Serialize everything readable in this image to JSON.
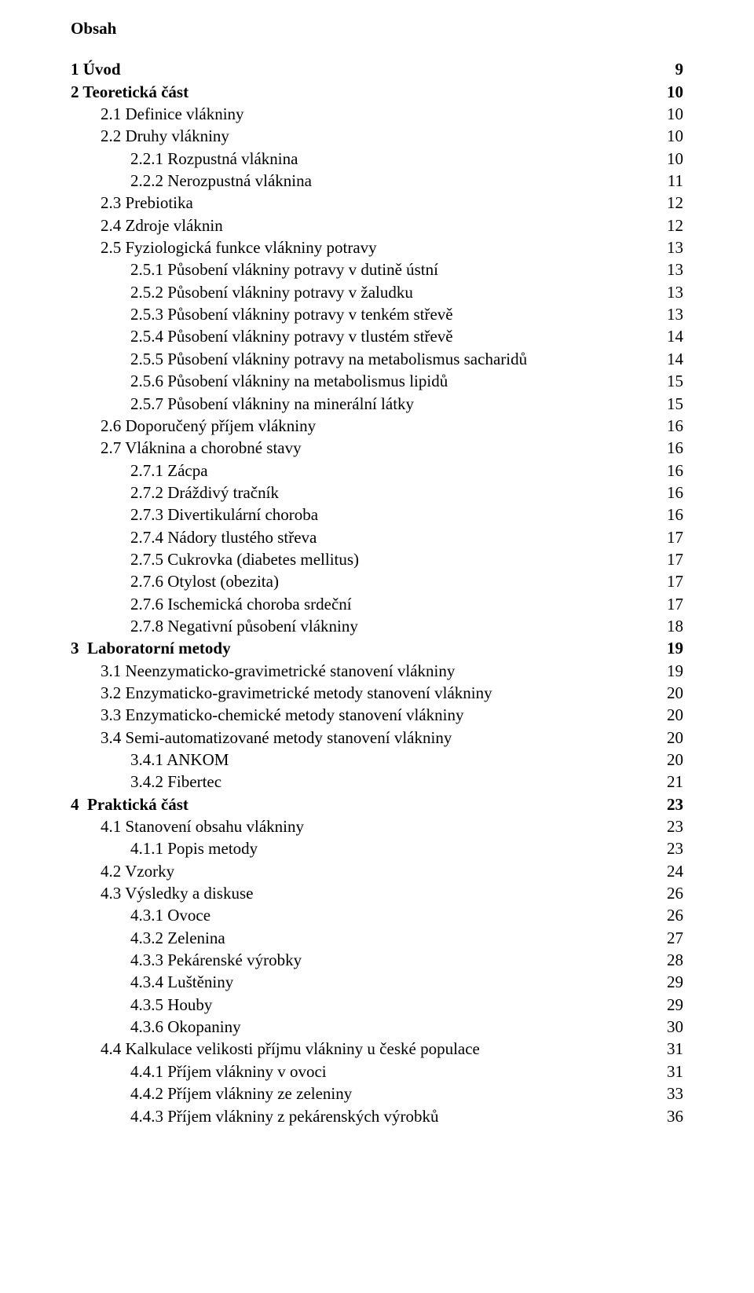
{
  "title": "Obsah",
  "entries": [
    {
      "label": "1 Úvod",
      "page": "9",
      "indent": 0,
      "bold": true
    },
    {
      "label": "2 Teoretická část",
      "page": "10",
      "indent": 0,
      "bold": true
    },
    {
      "label": "2.1 Definice vlákniny",
      "page": "10",
      "indent": 1,
      "bold": false
    },
    {
      "label": "2.2 Druhy vlákniny",
      "page": "10",
      "indent": 1,
      "bold": false
    },
    {
      "label": "2.2.1 Rozpustná vláknina",
      "page": "10",
      "indent": 2,
      "bold": false
    },
    {
      "label": "2.2.2 Nerozpustná vláknina",
      "page": "11",
      "indent": 2,
      "bold": false
    },
    {
      "label": "2.3 Prebiotika",
      "page": "12",
      "indent": 1,
      "bold": false
    },
    {
      "label": "2.4 Zdroje vláknin",
      "page": "12",
      "indent": 1,
      "bold": false
    },
    {
      "label": "2.5 Fyziologická funkce vlákniny potravy",
      "page": "13",
      "indent": 1,
      "bold": false
    },
    {
      "label": "2.5.1 Působení vlákniny potravy v dutině ústní",
      "page": "13",
      "indent": 2,
      "bold": false
    },
    {
      "label": "2.5.2 Působení vlákniny potravy v žaludku",
      "page": "13",
      "indent": 2,
      "bold": false
    },
    {
      "label": "2.5.3 Působení vlákniny potravy v tenkém střevě",
      "page": "13",
      "indent": 2,
      "bold": false
    },
    {
      "label": "2.5.4 Působení vlákniny potravy v tlustém střevě",
      "page": "14",
      "indent": 2,
      "bold": false
    },
    {
      "label": "2.5.5 Působení vlákniny potravy na metabolismus sacharidů",
      "page": "14",
      "indent": 2,
      "bold": false
    },
    {
      "label": "2.5.6 Působení vlákniny na metabolismus lipidů",
      "page": "15",
      "indent": 2,
      "bold": false
    },
    {
      "label": "2.5.7 Působení vlákniny na minerální látky",
      "page": "15",
      "indent": 2,
      "bold": false
    },
    {
      "label": "2.6 Doporučený příjem vlákniny",
      "page": "16",
      "indent": 1,
      "bold": false
    },
    {
      "label": "2.7 Vláknina a chorobné stavy",
      "page": "16",
      "indent": 1,
      "bold": false
    },
    {
      "label": "2.7.1 Zácpa",
      "page": "16",
      "indent": 2,
      "bold": false
    },
    {
      "label": "2.7.2 Dráždivý tračník",
      "page": "16",
      "indent": 2,
      "bold": false
    },
    {
      "label": "2.7.3 Divertikulární choroba",
      "page": "16",
      "indent": 2,
      "bold": false
    },
    {
      "label": "2.7.4 Nádory tlustého střeva",
      "page": "17",
      "indent": 2,
      "bold": false
    },
    {
      "label": "2.7.5 Cukrovka (diabetes mellitus)",
      "page": "17",
      "indent": 2,
      "bold": false
    },
    {
      "label": "2.7.6 Otylost (obezita)",
      "page": "17",
      "indent": 2,
      "bold": false
    },
    {
      "label": "2.7.6 Ischemická choroba srdeční",
      "page": "17",
      "indent": 2,
      "bold": false
    },
    {
      "label": "2.7.8 Negativní působení vlákniny",
      "page": "18",
      "indent": 2,
      "bold": false
    },
    {
      "label": "3  Laboratorní metody",
      "page": "19",
      "indent": 0,
      "bold": true
    },
    {
      "label": "3.1 Neenzymaticko-gravimetrické stanovení vlákniny",
      "page": "19",
      "indent": 1,
      "bold": false
    },
    {
      "label": "3.2 Enzymaticko-gravimetrické metody stanovení vlákniny",
      "page": "20",
      "indent": 1,
      "bold": false
    },
    {
      "label": "3.3 Enzymaticko-chemické metody stanovení vlákniny",
      "page": "20",
      "indent": 1,
      "bold": false
    },
    {
      "label": "3.4 Semi-automatizované metody stanovení vlákniny",
      "page": "20",
      "indent": 1,
      "bold": false
    },
    {
      "label": "3.4.1 ANKOM",
      "page": "20",
      "indent": 2,
      "bold": false
    },
    {
      "label": "3.4.2 Fibertec",
      "page": "21",
      "indent": 2,
      "bold": false
    },
    {
      "label": "4  Praktická část",
      "page": "23",
      "indent": 0,
      "bold": true
    },
    {
      "label": "4.1 Stanovení obsahu vlákniny",
      "page": "23",
      "indent": 1,
      "bold": false
    },
    {
      "label": "4.1.1 Popis metody",
      "page": "23",
      "indent": 2,
      "bold": false
    },
    {
      "label": "4.2 Vzorky",
      "page": "24",
      "indent": 1,
      "bold": false
    },
    {
      "label": "4.3 Výsledky a diskuse",
      "page": "26",
      "indent": 1,
      "bold": false
    },
    {
      "label": "4.3.1 Ovoce",
      "page": "26",
      "indent": 2,
      "bold": false
    },
    {
      "label": "4.3.2 Zelenina",
      "page": "27",
      "indent": 2,
      "bold": false
    },
    {
      "label": "4.3.3 Pekárenské výrobky",
      "page": "28",
      "indent": 2,
      "bold": false
    },
    {
      "label": "4.3.4 Luštěniny",
      "page": "29",
      "indent": 2,
      "bold": false
    },
    {
      "label": "4.3.5 Houby",
      "page": "29",
      "indent": 2,
      "bold": false
    },
    {
      "label": "4.3.6 Okopaniny",
      "page": "30",
      "indent": 2,
      "bold": false
    },
    {
      "label": "4.4 Kalkulace velikosti příjmu vlákniny u české populace",
      "page": "31",
      "indent": 1,
      "bold": false
    },
    {
      "label": "4.4.1 Příjem vlákniny v ovoci",
      "page": "31",
      "indent": 2,
      "bold": false
    },
    {
      "label": "4.4.2 Příjem vlákniny ze zeleniny",
      "page": "33",
      "indent": 2,
      "bold": false
    },
    {
      "label": "4.4.3 Příjem vlákniny z pekárenských výrobků",
      "page": "36",
      "indent": 2,
      "bold": false
    }
  ]
}
